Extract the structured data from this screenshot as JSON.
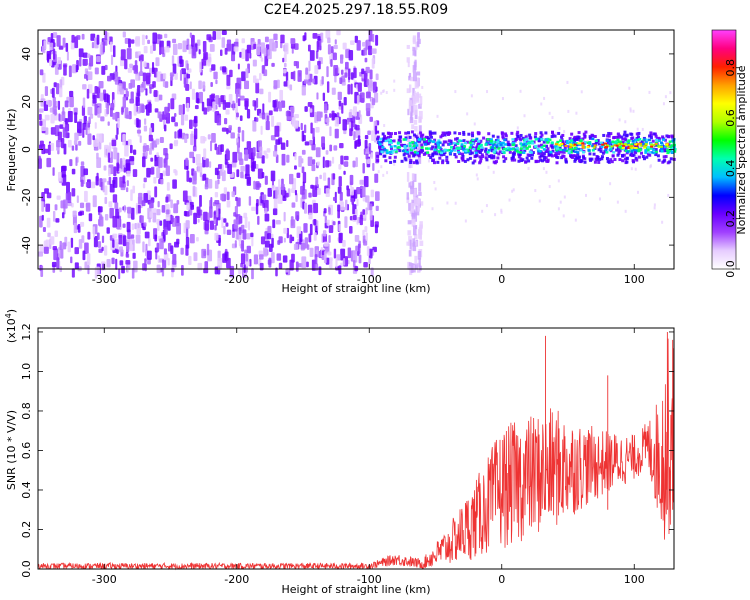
{
  "chart_data": [
    {
      "type": "heatmap",
      "title": "C2E4.2025.297.18.55.R09",
      "xlabel": "Height of straight line (km)",
      "ylabel": "Frequency (Hz)",
      "xlim": [
        -350,
        130
      ],
      "ylim": [
        -50,
        50
      ],
      "xticks": [
        -300,
        -200,
        -100,
        0,
        100
      ],
      "xtick_labels": [
        "-300",
        "-200",
        "-100",
        "0",
        "100"
      ],
      "yticks": [
        -40,
        -20,
        0,
        20,
        40
      ],
      "ytick_labels": [
        "-40",
        "-20",
        "0",
        "20",
        "40"
      ],
      "noise_region": [
        -350,
        -95
      ],
      "gap_noise_band": [
        -72,
        -62
      ],
      "signal_start": -95,
      "signal_band_hz": [
        -5,
        8
      ],
      "signal_peak_freq_hz": 2,
      "colorbar": {
        "label": "Normalized spectral amplitude",
        "range": [
          0,
          0.95
        ],
        "ticks": [
          0.0,
          0.2,
          0.4,
          0.6,
          0.8
        ],
        "tick_labels": [
          "0.0",
          "0.2",
          "0.4",
          "0.6",
          "0.8"
        ],
        "colors": [
          "#ffffff",
          "#e6ccff",
          "#a040ff",
          "#6a00ff",
          "#0000ff",
          "#00bfff",
          "#00ffb0",
          "#00ff00",
          "#b0ff00",
          "#ffff00",
          "#ffa000",
          "#ff2000",
          "#ff0080",
          "#ff40ff"
        ]
      }
    },
    {
      "type": "line",
      "xlabel": "Height of straight line (km)",
      "ylabel": "SNR (10 * V/V)",
      "scale_label": "(x10",
      "scale_exp": "4",
      "scale_close": ")",
      "xlim": [
        -350,
        130
      ],
      "ylim": [
        0,
        1.22
      ],
      "xticks": [
        -300,
        -200,
        -100,
        0,
        100
      ],
      "xtick_labels": [
        "-300",
        "-200",
        "-100",
        "0",
        "100"
      ],
      "yticks": [
        0.0,
        0.2,
        0.4,
        0.6,
        0.8,
        1.0,
        1.2
      ],
      "ytick_labels": [
        "0.0",
        "0.2",
        "0.4",
        "0.6",
        "0.8",
        "1.0",
        "1.2"
      ],
      "color": "#ee3333",
      "envelope": {
        "x": [
          -350,
          -100,
          -80,
          -60,
          -40,
          -20,
          0,
          20,
          40,
          60,
          80,
          100,
          110,
          120,
          125,
          130
        ],
        "max": [
          0.03,
          0.03,
          0.08,
          0.05,
          0.22,
          0.45,
          0.72,
          0.78,
          0.82,
          0.74,
          0.7,
          0.68,
          0.75,
          0.9,
          1.18,
          1.15
        ],
        "min": [
          0.0,
          0.0,
          0.02,
          0.0,
          0.02,
          0.05,
          0.1,
          0.15,
          0.2,
          0.3,
          0.38,
          0.45,
          0.5,
          0.2,
          0.1,
          0.3
        ]
      },
      "spikes": [
        {
          "x": 33,
          "y": 1.18
        },
        {
          "x": 80,
          "y": 0.98
        },
        {
          "x": 125,
          "y": 1.2
        },
        {
          "x": 129,
          "y": 1.16
        }
      ]
    }
  ]
}
